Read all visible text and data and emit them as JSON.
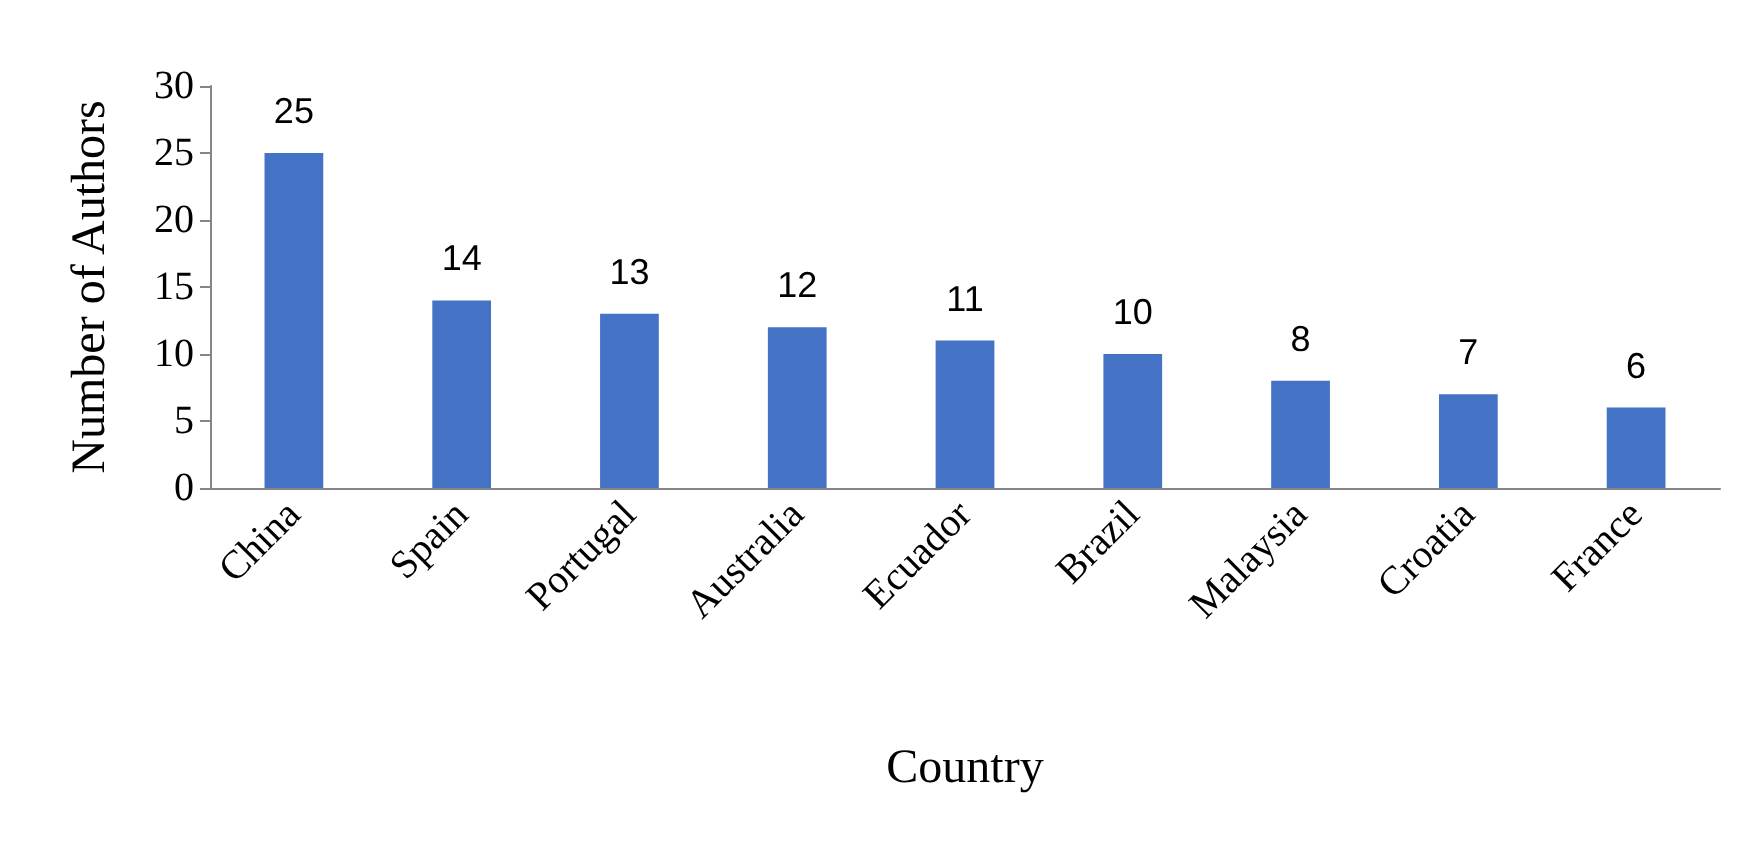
{
  "chart_data": {
    "type": "bar",
    "xlabel": "Country",
    "ylabel": "Number of Authors",
    "categories": [
      "China",
      "Spain",
      "Portugal",
      "Australia",
      "Ecuador",
      "Brazil",
      "Malaysia",
      "Croatia",
      "France"
    ],
    "values": [
      25,
      14,
      13,
      12,
      11,
      10,
      8,
      7,
      6
    ],
    "color": "#4472c4",
    "ylim": [
      0,
      30
    ],
    "yticks": [
      0,
      5,
      10,
      15,
      20,
      25,
      30
    ],
    "grid": false,
    "data_labels": true
  }
}
